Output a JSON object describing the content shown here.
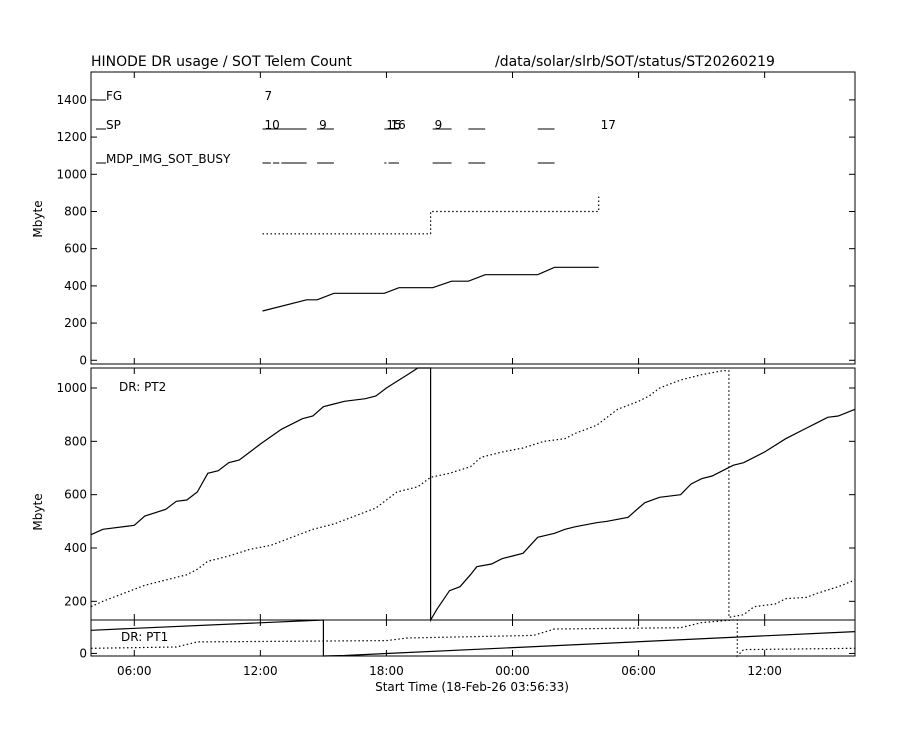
{
  "header": {
    "title": "HINODE DR usage / SOT Telem Count",
    "path": "/data/solar/slrb/SOT/status/ST20260219"
  },
  "colors": {
    "foreground": "#000000",
    "background": "#ffffff"
  },
  "chart_data": [
    {
      "type": "line",
      "panel": "SOT Telem Count",
      "ylabel": "Mbyte",
      "ylim": [
        -20,
        1550
      ],
      "yticks": [
        "0",
        "200",
        "400",
        "600",
        "800",
        "1000",
        "1200",
        "1400"
      ],
      "xlim_hours": [
        3.94,
        40.3
      ],
      "rows": [
        {
          "label": "FG",
          "counts": [
            {
              "x": 12.1,
              "text": "7"
            }
          ],
          "bars": []
        },
        {
          "label": "SP",
          "counts": [
            {
              "x": 12.1,
              "text": "10"
            },
            {
              "x": 14.7,
              "text": "9"
            },
            {
              "x": 17.9,
              "text": "15"
            },
            {
              "x": 18.1,
              "text": "16"
            },
            {
              "x": 20.2,
              "text": "9"
            },
            {
              "x": 28.1,
              "text": "17"
            }
          ],
          "bars": [
            [
              12.1,
              14.2
            ],
            [
              14.7,
              15.5
            ],
            [
              17.9,
              18.6
            ],
            [
              20.2,
              21.1
            ],
            [
              21.9,
              22.7
            ],
            [
              25.2,
              26.0
            ]
          ]
        },
        {
          "label": "MDP_IMG_SOT_BUSY",
          "counts": [],
          "bars": [
            [
              12.1,
              12.5
            ],
            [
              12.6,
              12.9
            ],
            [
              13.0,
              14.2
            ],
            [
              14.7,
              15.5
            ],
            [
              17.9,
              18.0
            ],
            [
              18.1,
              18.6
            ],
            [
              20.2,
              21.1
            ],
            [
              21.9,
              22.7
            ],
            [
              25.2,
              26.0
            ]
          ]
        }
      ],
      "series": [
        {
          "style": "dotted",
          "points": [
            [
              12.1,
              680
            ],
            [
              20.1,
              680
            ],
            [
              20.1,
              800
            ],
            [
              28.1,
              800
            ],
            [
              28.1,
              880
            ]
          ]
        },
        {
          "style": "solid",
          "points": [
            [
              12.1,
              265
            ],
            [
              14.2,
              325
            ],
            [
              14.7,
              325
            ],
            [
              15.5,
              360
            ],
            [
              17.9,
              360
            ],
            [
              18.6,
              390
            ],
            [
              20.2,
              390
            ],
            [
              21.1,
              425
            ],
            [
              21.9,
              425
            ],
            [
              22.7,
              460
            ],
            [
              25.2,
              460
            ],
            [
              26.0,
              500
            ],
            [
              28.1,
              500
            ]
          ]
        }
      ]
    },
    {
      "type": "line",
      "panel": "DR usage",
      "ylabel": "Mbyte",
      "ylim": [
        130,
        1075
      ],
      "yticks": [
        "200",
        "400",
        "600",
        "800",
        "1000"
      ],
      "annotation": "DR: PT2",
      "xlim_hours": [
        3.94,
        40.3
      ],
      "series": [
        {
          "style": "solid",
          "points": [
            [
              3.94,
              450
            ],
            [
              4.5,
              470
            ],
            [
              6.0,
              485
            ],
            [
              6.5,
              520
            ],
            [
              7.5,
              545
            ],
            [
              8.0,
              575
            ],
            [
              8.5,
              580
            ],
            [
              9.0,
              610
            ],
            [
              9.5,
              680
            ],
            [
              10.0,
              690
            ],
            [
              10.5,
              720
            ],
            [
              11.0,
              730
            ],
            [
              11.5,
              760
            ],
            [
              12.0,
              790
            ],
            [
              13.0,
              845
            ],
            [
              14.0,
              885
            ],
            [
              14.5,
              895
            ],
            [
              15.0,
              930
            ],
            [
              15.5,
              940
            ],
            [
              16.0,
              950
            ],
            [
              17.0,
              960
            ],
            [
              17.5,
              970
            ],
            [
              18.0,
              1000
            ],
            [
              19.0,
              1050
            ],
            [
              19.5,
              1075
            ],
            [
              20.1,
              1075
            ],
            [
              20.1,
              130
            ],
            [
              20.4,
              170
            ],
            [
              21.0,
              240
            ],
            [
              21.5,
              255
            ],
            [
              22.0,
              300
            ],
            [
              22.3,
              330
            ],
            [
              23.0,
              340
            ],
            [
              23.5,
              360
            ],
            [
              24.0,
              370
            ],
            [
              24.5,
              380
            ],
            [
              25.2,
              440
            ],
            [
              26.0,
              455
            ],
            [
              26.5,
              470
            ],
            [
              27.0,
              480
            ],
            [
              28.0,
              495
            ],
            [
              28.5,
              500
            ],
            [
              29.5,
              515
            ],
            [
              30.0,
              550
            ],
            [
              30.3,
              570
            ],
            [
              31.0,
              590
            ],
            [
              32.0,
              600
            ],
            [
              32.5,
              640
            ],
            [
              33.0,
              660
            ],
            [
              33.5,
              670
            ],
            [
              34.0,
              690
            ],
            [
              34.5,
              710
            ],
            [
              35.0,
              720
            ],
            [
              36.0,
              760
            ],
            [
              37.0,
              810
            ],
            [
              38.0,
              850
            ],
            [
              38.5,
              870
            ],
            [
              39.0,
              890
            ],
            [
              39.5,
              895
            ],
            [
              40.3,
              920
            ]
          ]
        },
        {
          "style": "dotted",
          "points": [
            [
              3.94,
              180
            ],
            [
              4.5,
              200
            ],
            [
              5.5,
              230
            ],
            [
              6.5,
              260
            ],
            [
              7.5,
              280
            ],
            [
              8.5,
              300
            ],
            [
              9.0,
              320
            ],
            [
              9.5,
              350
            ],
            [
              10.5,
              370
            ],
            [
              11.5,
              395
            ],
            [
              12.5,
              410
            ],
            [
              13.5,
              440
            ],
            [
              14.5,
              470
            ],
            [
              15.5,
              490
            ],
            [
              16.5,
              520
            ],
            [
              17.5,
              550
            ],
            [
              18.0,
              580
            ],
            [
              18.5,
              610
            ],
            [
              19.5,
              630
            ],
            [
              20.1,
              665
            ],
            [
              21.0,
              680
            ],
            [
              22.0,
              705
            ],
            [
              22.5,
              740
            ],
            [
              23.5,
              760
            ],
            [
              24.5,
              775
            ],
            [
              25.5,
              800
            ],
            [
              26.5,
              810
            ],
            [
              27.0,
              830
            ],
            [
              28.0,
              860
            ],
            [
              28.5,
              890
            ],
            [
              29.0,
              920
            ],
            [
              30.0,
              950
            ],
            [
              30.5,
              970
            ],
            [
              31.0,
              1000
            ],
            [
              32.0,
              1030
            ],
            [
              33.0,
              1050
            ],
            [
              34.0,
              1065
            ],
            [
              34.3,
              1065
            ],
            [
              34.3,
              140
            ],
            [
              35.0,
              150
            ],
            [
              35.5,
              180
            ],
            [
              36.5,
              190
            ],
            [
              37.0,
              210
            ],
            [
              38.0,
              215
            ],
            [
              38.5,
              230
            ],
            [
              39.5,
              255
            ],
            [
              40.3,
              280
            ]
          ]
        }
      ]
    },
    {
      "type": "line",
      "panel": "DR usage PT1",
      "ylabel": "",
      "ylim": [
        -10,
        130
      ],
      "yticks": [
        "0"
      ],
      "annotation": "DR: PT1",
      "xlim_hours": [
        3.94,
        40.3
      ],
      "xlabel": "Start Time (18-Feb-26 03:56:33)",
      "xticks": [
        {
          "hour": 6,
          "label": "06:00"
        },
        {
          "hour": 12,
          "label": "12:00"
        },
        {
          "hour": 18,
          "label": "18:00"
        },
        {
          "hour": 24,
          "label": "00:00"
        },
        {
          "hour": 30,
          "label": "06:00"
        },
        {
          "hour": 36,
          "label": "12:00"
        }
      ],
      "series": [
        {
          "style": "solid",
          "points": [
            [
              3.94,
              90
            ],
            [
              15.0,
              130
            ],
            [
              15.0,
              -10
            ],
            [
              16.0,
              -8
            ],
            [
              40.3,
              85
            ]
          ]
        },
        {
          "style": "dotted",
          "points": [
            [
              3.94,
              20
            ],
            [
              8.0,
              25
            ],
            [
              9.0,
              45
            ],
            [
              18.0,
              50
            ],
            [
              19.0,
              60
            ],
            [
              25.0,
              70
            ],
            [
              26.0,
              95
            ],
            [
              32.0,
              100
            ],
            [
              33.0,
              120
            ],
            [
              34.5,
              130
            ],
            [
              34.7,
              130
            ],
            [
              34.7,
              -10
            ],
            [
              35.0,
              15
            ],
            [
              40.3,
              20
            ]
          ]
        }
      ]
    }
  ]
}
